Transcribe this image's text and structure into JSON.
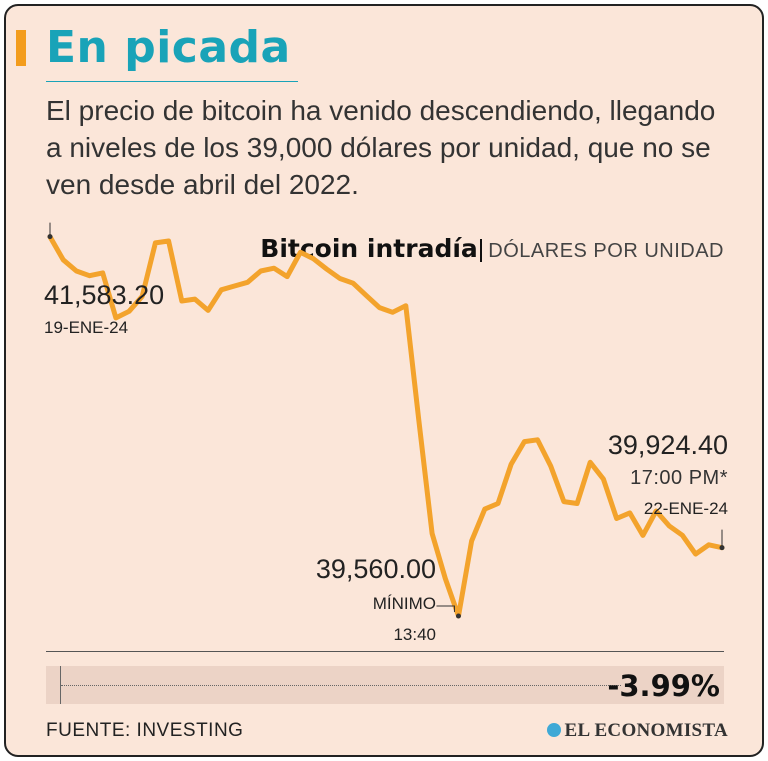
{
  "title": "En picada",
  "subtitle": "El precio de bitcoin ha venido descendiendo, llegando a niveles de los 39,000 dólares por unidad, que no se ven desde abril del 2022.",
  "source": "FUENTE: INVESTING",
  "brand": "EL ECONOMISTA",
  "colors": {
    "title": "#19a3b8",
    "accent": "#f39c1c",
    "line": "#f3a32c",
    "background": "#fbe6d9"
  },
  "chart_data": {
    "type": "line",
    "title": "Bitcoin intradía",
    "unit_label": "DÓLARES POR UNIDAD",
    "ylim": [
      39400,
      41800
    ],
    "values": [
      41583.2,
      41460,
      41400,
      41375,
      41390,
      41150,
      41185,
      41265,
      41550,
      41560,
      41240,
      41250,
      41190,
      41300,
      41320,
      41340,
      41400,
      41415,
      41370,
      41500,
      41465,
      41410,
      41360,
      41335,
      41270,
      41205,
      41180,
      41215,
      40600,
      40000,
      39760,
      39560,
      39960,
      40130,
      40160,
      40370,
      40490,
      40500,
      40360,
      40170,
      40160,
      40380,
      40290,
      40080,
      40110,
      39990,
      40120,
      40040,
      39990,
      39890,
      39940,
      39924.4
    ],
    "start": {
      "value": "41,583.20",
      "date": "19-ENE-24"
    },
    "min": {
      "value": "39,560.00",
      "label": "MÍNIMO",
      "time": "13:40"
    },
    "end": {
      "value": "39,924.40",
      "time": "17:00 PM*",
      "date": "22-ENE-24"
    },
    "change": "-3.99%"
  }
}
